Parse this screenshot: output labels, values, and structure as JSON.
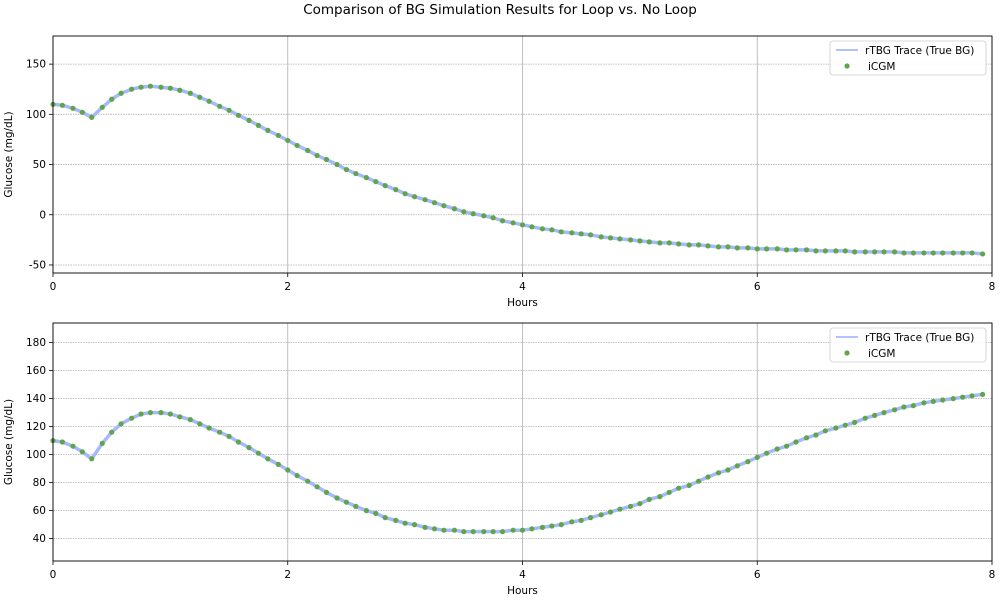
{
  "title": "Comparison of BG Simulation Results for Loop vs. No Loop",
  "colors": {
    "line": "#a7b8ff",
    "dots": "#5fa64a",
    "grid": "#b0b0b0"
  },
  "chart_data": [
    {
      "type": "line",
      "xlabel": "Hours",
      "ylabel": "Glucose (mg/dL)",
      "xlim": [
        0,
        8
      ],
      "ylim": [
        -58,
        178
      ],
      "xticks": [
        0,
        2,
        4,
        6,
        8
      ],
      "yticks": [
        -50,
        0,
        50,
        100,
        150
      ],
      "grid": true,
      "legend_position": "top-right",
      "series": [
        {
          "name": "rTBG Trace (True BG)",
          "kind": "line"
        },
        {
          "name": "iCGM",
          "kind": "scatter"
        }
      ],
      "points": [
        [
          0.0,
          110
        ],
        [
          0.08,
          109
        ],
        [
          0.17,
          106
        ],
        [
          0.25,
          102
        ],
        [
          0.33,
          97
        ],
        [
          0.42,
          107
        ],
        [
          0.5,
          115
        ],
        [
          0.58,
          121
        ],
        [
          0.67,
          125
        ],
        [
          0.75,
          127
        ],
        [
          0.83,
          128
        ],
        [
          0.92,
          127
        ],
        [
          1.0,
          126
        ],
        [
          1.08,
          124
        ],
        [
          1.17,
          121
        ],
        [
          1.25,
          117
        ],
        [
          1.33,
          113
        ],
        [
          1.42,
          108
        ],
        [
          1.5,
          104
        ],
        [
          1.58,
          99
        ],
        [
          1.67,
          94
        ],
        [
          1.75,
          89
        ],
        [
          1.83,
          84
        ],
        [
          1.92,
          79
        ],
        [
          2.0,
          74
        ],
        [
          2.08,
          69
        ],
        [
          2.17,
          64
        ],
        [
          2.25,
          59
        ],
        [
          2.33,
          55
        ],
        [
          2.42,
          50
        ],
        [
          2.5,
          45
        ],
        [
          2.58,
          41
        ],
        [
          2.67,
          37
        ],
        [
          2.75,
          33
        ],
        [
          2.83,
          29
        ],
        [
          2.92,
          25
        ],
        [
          3.0,
          21
        ],
        [
          3.08,
          18
        ],
        [
          3.17,
          15
        ],
        [
          3.25,
          12
        ],
        [
          3.33,
          9
        ],
        [
          3.42,
          6
        ],
        [
          3.5,
          3
        ],
        [
          3.58,
          1
        ],
        [
          3.67,
          -1
        ],
        [
          3.75,
          -3
        ],
        [
          3.83,
          -6
        ],
        [
          3.92,
          -8
        ],
        [
          4.0,
          -10
        ],
        [
          4.08,
          -12
        ],
        [
          4.17,
          -14
        ],
        [
          4.25,
          -15
        ],
        [
          4.33,
          -17
        ],
        [
          4.42,
          -18
        ],
        [
          4.5,
          -19
        ],
        [
          4.58,
          -20
        ],
        [
          4.67,
          -22
        ],
        [
          4.75,
          -23
        ],
        [
          4.83,
          -24
        ],
        [
          4.92,
          -25
        ],
        [
          5.0,
          -26
        ],
        [
          5.08,
          -27
        ],
        [
          5.17,
          -28
        ],
        [
          5.25,
          -28
        ],
        [
          5.33,
          -29
        ],
        [
          5.42,
          -30
        ],
        [
          5.5,
          -30
        ],
        [
          5.58,
          -31
        ],
        [
          5.67,
          -32
        ],
        [
          5.75,
          -32
        ],
        [
          5.83,
          -33
        ],
        [
          5.92,
          -33
        ],
        [
          6.0,
          -34
        ],
        [
          6.08,
          -34
        ],
        [
          6.17,
          -34
        ],
        [
          6.25,
          -35
        ],
        [
          6.33,
          -35
        ],
        [
          6.42,
          -35
        ],
        [
          6.5,
          -36
        ],
        [
          6.58,
          -36
        ],
        [
          6.67,
          -36
        ],
        [
          6.75,
          -36
        ],
        [
          6.83,
          -37
        ],
        [
          6.92,
          -37
        ],
        [
          7.0,
          -37
        ],
        [
          7.08,
          -37
        ],
        [
          7.17,
          -37
        ],
        [
          7.25,
          -38
        ],
        [
          7.33,
          -38
        ],
        [
          7.42,
          -38
        ],
        [
          7.5,
          -38
        ],
        [
          7.58,
          -38
        ],
        [
          7.67,
          -38
        ],
        [
          7.75,
          -38
        ],
        [
          7.83,
          -38
        ],
        [
          7.92,
          -39
        ]
      ]
    },
    {
      "type": "line",
      "xlabel": "Hours",
      "ylabel": "Glucose (mg/dL)",
      "xlim": [
        0,
        8
      ],
      "ylim": [
        24,
        194
      ],
      "xticks": [
        0,
        2,
        4,
        6,
        8
      ],
      "yticks": [
        40,
        60,
        80,
        100,
        120,
        140,
        160,
        180
      ],
      "grid": true,
      "legend_position": "top-right",
      "series": [
        {
          "name": "rTBG Trace (True BG)",
          "kind": "line"
        },
        {
          "name": "iCGM",
          "kind": "scatter"
        }
      ],
      "points": [
        [
          0.0,
          110
        ],
        [
          0.08,
          109
        ],
        [
          0.17,
          106
        ],
        [
          0.25,
          102
        ],
        [
          0.33,
          97
        ],
        [
          0.42,
          108
        ],
        [
          0.5,
          116
        ],
        [
          0.58,
          122
        ],
        [
          0.67,
          126
        ],
        [
          0.75,
          129
        ],
        [
          0.83,
          130
        ],
        [
          0.92,
          130
        ],
        [
          1.0,
          129
        ],
        [
          1.08,
          127
        ],
        [
          1.17,
          125
        ],
        [
          1.25,
          122
        ],
        [
          1.33,
          119
        ],
        [
          1.42,
          116
        ],
        [
          1.5,
          113
        ],
        [
          1.58,
          109
        ],
        [
          1.67,
          105
        ],
        [
          1.75,
          101
        ],
        [
          1.83,
          97
        ],
        [
          1.92,
          93
        ],
        [
          2.0,
          89
        ],
        [
          2.08,
          85
        ],
        [
          2.17,
          81
        ],
        [
          2.25,
          77
        ],
        [
          2.33,
          73
        ],
        [
          2.42,
          69
        ],
        [
          2.5,
          66
        ],
        [
          2.58,
          63
        ],
        [
          2.67,
          60
        ],
        [
          2.75,
          58
        ],
        [
          2.83,
          55
        ],
        [
          2.92,
          53
        ],
        [
          3.0,
          51
        ],
        [
          3.08,
          50
        ],
        [
          3.17,
          48
        ],
        [
          3.25,
          47
        ],
        [
          3.33,
          46
        ],
        [
          3.42,
          46
        ],
        [
          3.5,
          45
        ],
        [
          3.58,
          45
        ],
        [
          3.67,
          45
        ],
        [
          3.75,
          45
        ],
        [
          3.83,
          45
        ],
        [
          3.92,
          46
        ],
        [
          4.0,
          46
        ],
        [
          4.08,
          47
        ],
        [
          4.17,
          48
        ],
        [
          4.25,
          49
        ],
        [
          4.33,
          50
        ],
        [
          4.42,
          52
        ],
        [
          4.5,
          53
        ],
        [
          4.58,
          55
        ],
        [
          4.67,
          57
        ],
        [
          4.75,
          59
        ],
        [
          4.83,
          61
        ],
        [
          4.92,
          63
        ],
        [
          5.0,
          65
        ],
        [
          5.08,
          68
        ],
        [
          5.17,
          70
        ],
        [
          5.25,
          73
        ],
        [
          5.33,
          76
        ],
        [
          5.42,
          78
        ],
        [
          5.5,
          81
        ],
        [
          5.58,
          84
        ],
        [
          5.67,
          87
        ],
        [
          5.75,
          89
        ],
        [
          5.83,
          92
        ],
        [
          5.92,
          95
        ],
        [
          6.0,
          98
        ],
        [
          6.08,
          101
        ],
        [
          6.17,
          104
        ],
        [
          6.25,
          106
        ],
        [
          6.33,
          109
        ],
        [
          6.42,
          112
        ],
        [
          6.5,
          114
        ],
        [
          6.58,
          117
        ],
        [
          6.67,
          119
        ],
        [
          6.75,
          121
        ],
        [
          6.83,
          123
        ],
        [
          6.92,
          126
        ],
        [
          7.0,
          128
        ],
        [
          7.08,
          130
        ],
        [
          7.17,
          132
        ],
        [
          7.25,
          134
        ],
        [
          7.33,
          135
        ],
        [
          7.42,
          137
        ],
        [
          7.5,
          138
        ],
        [
          7.58,
          139
        ],
        [
          7.67,
          140
        ],
        [
          7.75,
          141
        ],
        [
          7.83,
          142
        ],
        [
          7.92,
          143
        ]
      ]
    }
  ]
}
